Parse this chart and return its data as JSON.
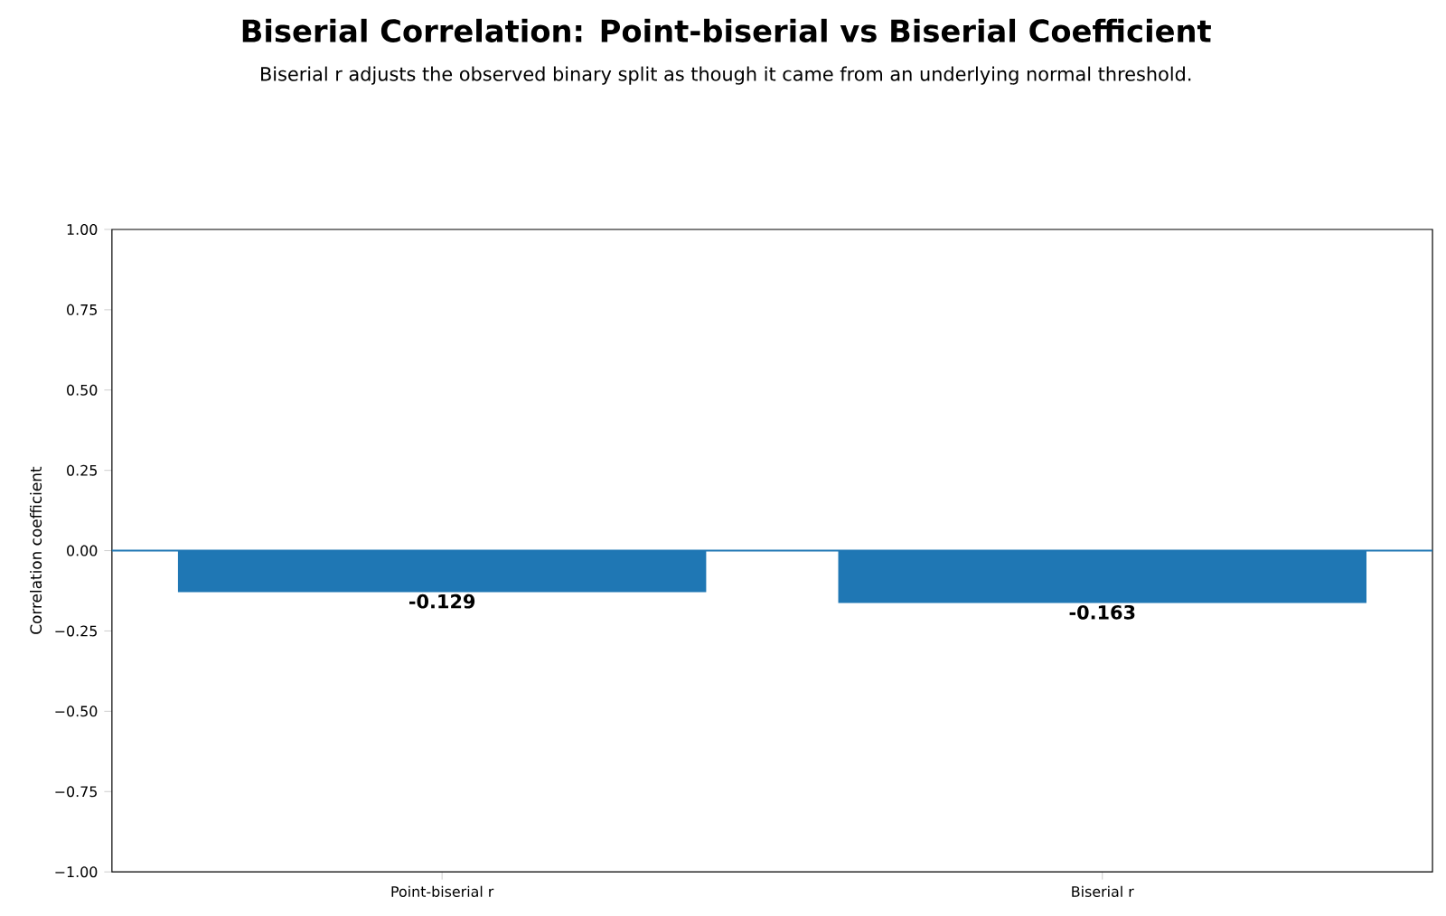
{
  "chart_data": {
    "type": "bar",
    "title": "Biserial Correlation: Point-biserial vs Biserial Coefficient",
    "subtitle": "Biserial r adjusts the observed binary split as though it came from an underlying normal threshold.",
    "ylabel": "Correlation coefficient",
    "categories": [
      "Point-biserial r",
      "Biserial r"
    ],
    "values": [
      -0.129,
      -0.163
    ],
    "color": "#1f77b4",
    "ylim": [
      -1,
      1
    ],
    "yticks": [
      {
        "value": -1,
        "label": "−1.00"
      },
      {
        "value": -0.75,
        "label": "−0.75"
      },
      {
        "value": -0.5,
        "label": "−0.50"
      },
      {
        "value": -0.25,
        "label": "−0.25"
      },
      {
        "value": 0,
        "label": "0.00"
      },
      {
        "value": 0.25,
        "label": "0.25"
      },
      {
        "value": 0.5,
        "label": "0.50"
      },
      {
        "value": 0.75,
        "label": "0.75"
      },
      {
        "value": 1,
        "label": "1.00"
      }
    ],
    "data_labels": true,
    "ref_lines": [
      {
        "axis": "y",
        "value": 0,
        "color": "#1f77b4"
      }
    ]
  }
}
